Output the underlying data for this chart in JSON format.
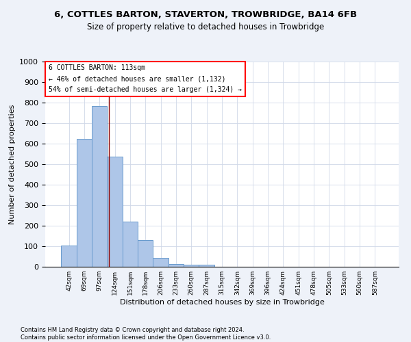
{
  "title": "6, COTTLES BARTON, STAVERTON, TROWBRIDGE, BA14 6FB",
  "subtitle": "Size of property relative to detached houses in Trowbridge",
  "xlabel": "Distribution of detached houses by size in Trowbridge",
  "ylabel": "Number of detached properties",
  "bar_values": [
    103,
    623,
    785,
    536,
    221,
    131,
    42,
    15,
    10,
    10,
    0,
    0,
    0,
    0,
    0,
    0,
    0,
    0,
    0,
    0,
    0
  ],
  "categories": [
    "42sqm",
    "69sqm",
    "97sqm",
    "124sqm",
    "151sqm",
    "178sqm",
    "206sqm",
    "233sqm",
    "260sqm",
    "287sqm",
    "315sqm",
    "342sqm",
    "369sqm",
    "396sqm",
    "424sqm",
    "451sqm",
    "478sqm",
    "505sqm",
    "533sqm",
    "560sqm",
    "587sqm"
  ],
  "bar_color": "#aec6e8",
  "bar_edge_color": "#6699cc",
  "vline_color": "#8b0000",
  "annotation_box_text": "6 COTTLES BARTON: 113sqm\n← 46% of detached houses are smaller (1,132)\n54% of semi-detached houses are larger (1,324) →",
  "ylim": [
    0,
    1000
  ],
  "yticks": [
    0,
    100,
    200,
    300,
    400,
    500,
    600,
    700,
    800,
    900,
    1000
  ],
  "footer_line1": "Contains HM Land Registry data © Crown copyright and database right 2024.",
  "footer_line2": "Contains public sector information licensed under the Open Government Licence v3.0.",
  "bg_color": "#eef2f9",
  "plot_bg_color": "#ffffff",
  "grid_color": "#d0d8e8"
}
